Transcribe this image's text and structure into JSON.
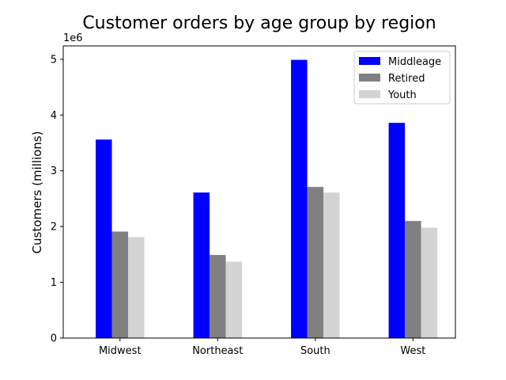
{
  "chart_data": {
    "type": "bar",
    "title": "Customer orders by age group by region",
    "xlabel": "",
    "ylabel": "Customers (millions)",
    "y_offset_label": "1e6",
    "categories": [
      "Midwest",
      "Northeast",
      "South",
      "West"
    ],
    "series": [
      {
        "name": "Middleage",
        "color": "#0000ff",
        "values": [
          3560000,
          2610000,
          4990000,
          3860000
        ]
      },
      {
        "name": "Retired",
        "color": "#808080",
        "values": [
          1910000,
          1490000,
          2710000,
          2100000
        ]
      },
      {
        "name": "Youth",
        "color": "#d3d3d3",
        "values": [
          1810000,
          1370000,
          2610000,
          1980000
        ]
      }
    ],
    "ylim": [
      0,
      5240000
    ],
    "yticks": [
      {
        "value": 0,
        "label": "0"
      },
      {
        "value": 1000000,
        "label": "1"
      },
      {
        "value": 2000000,
        "label": "2"
      },
      {
        "value": 3000000,
        "label": "3"
      },
      {
        "value": 4000000,
        "label": "4"
      },
      {
        "value": 5000000,
        "label": "5"
      }
    ],
    "legend_position": "top-right",
    "grid": false
  }
}
